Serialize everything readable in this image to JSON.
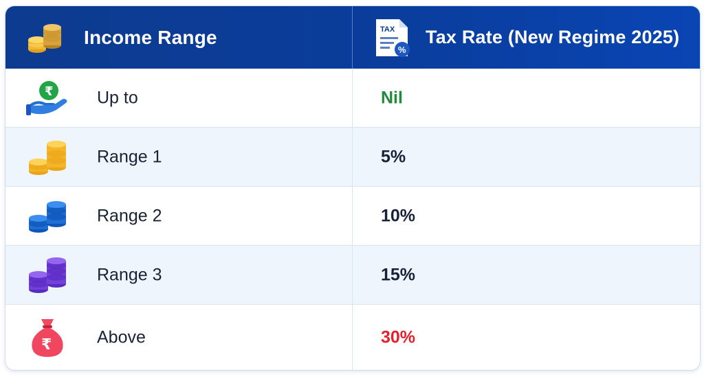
{
  "header": {
    "income_title": "Income Range",
    "tax_title": "Tax Rate (New Regime 2025)",
    "tax_icon_text": "TAX",
    "income_icon": "coin-stacks-icon",
    "tax_icon": "tax-document-icon"
  },
  "rows": [
    {
      "label": "Up to",
      "rate": "Nil",
      "icon": "hand-rupee-coin-icon",
      "rate_color": "#1e8a3a"
    },
    {
      "label": "Range 1",
      "rate": "5%",
      "icon": "yellow-coin-stacks-icon",
      "rate_color": "#17213a"
    },
    {
      "label": "Range 2",
      "rate": "10%",
      "icon": "blue-coin-stacks-icon",
      "rate_color": "#17213a"
    },
    {
      "label": "Range 3",
      "rate": "15%",
      "icon": "purple-coin-stacks-icon",
      "rate_color": "#17213a"
    },
    {
      "label": "Above",
      "rate": "30%",
      "icon": "rupee-money-bag-icon",
      "rate_color": "#ea1d2c"
    }
  ],
  "icon_symbols": {
    "rupee": "₹"
  }
}
